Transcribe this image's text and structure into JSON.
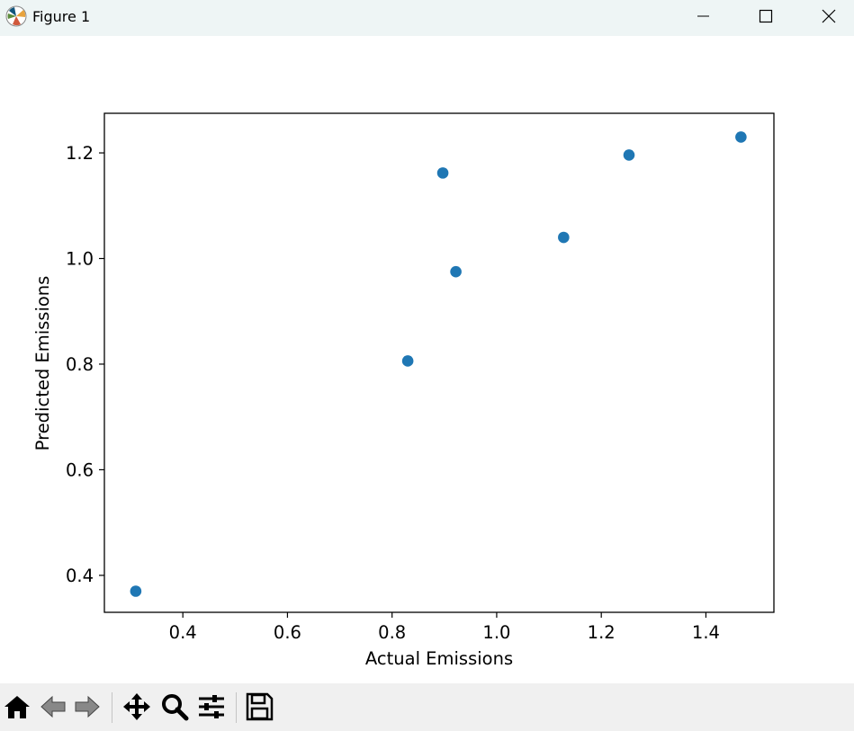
{
  "window": {
    "title": "Figure 1",
    "icons": {
      "app": "matplotlib-icon",
      "minimize": "minimize-icon",
      "maximize": "maximize-icon",
      "close": "close-icon"
    }
  },
  "toolbar": {
    "items": [
      {
        "name": "home-icon",
        "tooltip": ""
      },
      {
        "name": "back-arrow-icon"
      },
      {
        "name": "forward-arrow-icon"
      },
      {
        "name": "pan-move-icon"
      },
      {
        "name": "zoom-magnifier-icon"
      },
      {
        "name": "configure-subplots-icon"
      },
      {
        "name": "save-floppy-icon"
      }
    ]
  },
  "chart_data": {
    "type": "scatter",
    "xlabel": "Actual Emissions",
    "ylabel": "Predicted Emissions",
    "xlim": [
      0.25,
      1.53
    ],
    "ylim": [
      0.33,
      1.275
    ],
    "xticks": [
      0.4,
      0.6,
      0.8,
      1.0,
      1.2,
      1.4
    ],
    "xtick_labels": [
      "0.4",
      "0.6",
      "0.8",
      "1.0",
      "1.2",
      "1.4"
    ],
    "yticks": [
      0.4,
      0.6,
      0.8,
      1.0,
      1.2
    ],
    "ytick_labels": [
      "0.4",
      "0.6",
      "0.8",
      "1.0",
      "1.2"
    ],
    "grid": false,
    "marker_color": "#1f77b4",
    "points": [
      {
        "x": 0.31,
        "y": 0.37
      },
      {
        "x": 0.83,
        "y": 0.806
      },
      {
        "x": 0.897,
        "y": 1.162
      },
      {
        "x": 0.922,
        "y": 0.975
      },
      {
        "x": 1.128,
        "y": 1.04
      },
      {
        "x": 1.253,
        "y": 1.196
      },
      {
        "x": 1.467,
        "y": 1.23
      }
    ]
  }
}
